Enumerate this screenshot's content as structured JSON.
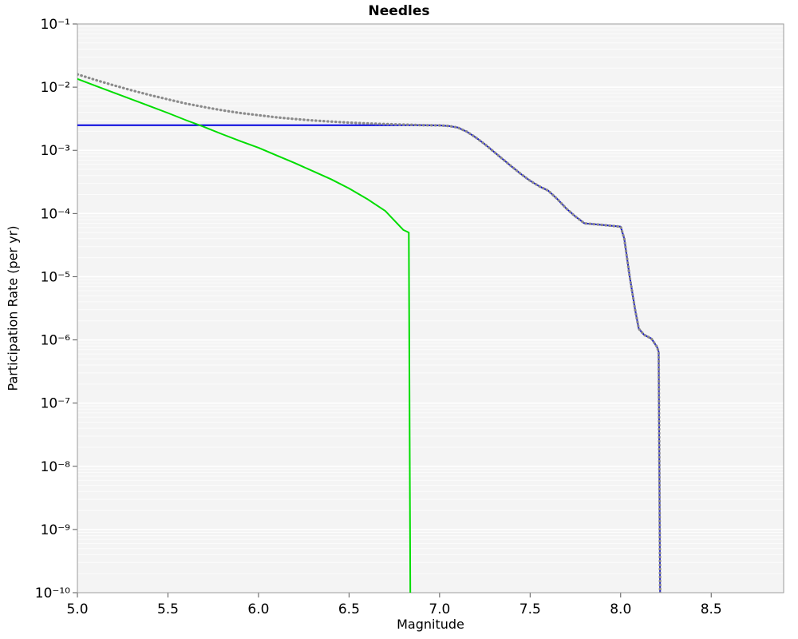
{
  "chart_data": {
    "type": "line",
    "title": "Needles",
    "xlabel": "Magnitude",
    "ylabel": "Participation Rate (per yr)",
    "xlim": [
      5.0,
      8.9
    ],
    "ylim_exp": [
      -10,
      -1
    ],
    "grid": true,
    "legend": "none",
    "colors": {
      "plot_bg": "#f4f4f4",
      "grid": "#ffffff",
      "frame": "#9b9b9b",
      "tick": "#555555",
      "text": "#000000"
    },
    "x_ticks": [
      {
        "v": 5.0,
        "label": "5.0"
      },
      {
        "v": 5.5,
        "label": "5.5"
      },
      {
        "v": 6.0,
        "label": "6.0"
      },
      {
        "v": 6.5,
        "label": "6.5"
      },
      {
        "v": 7.0,
        "label": "7.0"
      },
      {
        "v": 7.5,
        "label": "7.5"
      },
      {
        "v": 8.0,
        "label": "8.0"
      },
      {
        "v": 8.5,
        "label": "8.5"
      }
    ],
    "y_ticks": [
      {
        "exp": -1,
        "label": "10⁻¹"
      },
      {
        "exp": -2,
        "label": "10⁻²"
      },
      {
        "exp": -3,
        "label": "10⁻³"
      },
      {
        "exp": -4,
        "label": "10⁻⁴"
      },
      {
        "exp": -5,
        "label": "10⁻⁵"
      },
      {
        "exp": -6,
        "label": "10⁻⁶"
      },
      {
        "exp": -7,
        "label": "10⁻⁷"
      },
      {
        "exp": -8,
        "label": "10⁻⁸"
      },
      {
        "exp": -9,
        "label": "10⁻⁹"
      },
      {
        "exp": -10,
        "label": "10⁻¹⁰"
      }
    ],
    "series": [
      {
        "id": "blue-solid",
        "color": "#0000dd",
        "style": "solid",
        "width": 2,
        "points": [
          [
            5.0,
            0.0025
          ],
          [
            6.9,
            0.0025
          ],
          [
            7.0,
            0.00248
          ],
          [
            7.05,
            0.00243
          ],
          [
            7.1,
            0.0023
          ],
          [
            7.15,
            0.00198
          ],
          [
            7.2,
            0.0016
          ],
          [
            7.25,
            0.00125
          ],
          [
            7.3,
            0.00095
          ],
          [
            7.35,
            0.00072
          ],
          [
            7.4,
            0.00055
          ],
          [
            7.45,
            0.00042
          ],
          [
            7.5,
            0.00033
          ],
          [
            7.55,
            0.00027
          ],
          [
            7.6,
            0.00023
          ],
          [
            7.65,
            0.00017
          ],
          [
            7.7,
            0.00012
          ],
          [
            7.75,
            9e-05
          ],
          [
            7.8,
            7e-05
          ],
          [
            7.9,
            6.6e-05
          ],
          [
            8.0,
            6.2e-05
          ],
          [
            8.02,
            4e-05
          ],
          [
            8.05,
            1e-05
          ],
          [
            8.08,
            3e-06
          ],
          [
            8.1,
            1.5e-06
          ],
          [
            8.13,
            1.2e-06
          ],
          [
            8.17,
            1.05e-06
          ],
          [
            8.2,
            7.8e-07
          ],
          [
            8.21,
            6.5e-07
          ],
          [
            8.22,
            1e-11
          ]
        ]
      },
      {
        "id": "green-solid",
        "color": "#00dd00",
        "style": "solid",
        "width": 2,
        "points": [
          [
            5.0,
            0.0135
          ],
          [
            5.1,
            0.0105
          ],
          [
            5.2,
            0.0082
          ],
          [
            5.3,
            0.0064
          ],
          [
            5.4,
            0.005
          ],
          [
            5.5,
            0.0039
          ],
          [
            5.6,
            0.003
          ],
          [
            5.7,
            0.00235
          ],
          [
            5.8,
            0.0018
          ],
          [
            5.9,
            0.0014
          ],
          [
            6.0,
            0.0011
          ],
          [
            6.1,
            0.00083
          ],
          [
            6.2,
            0.00063
          ],
          [
            6.3,
            0.00047
          ],
          [
            6.4,
            0.00035
          ],
          [
            6.5,
            0.00025
          ],
          [
            6.6,
            0.00017
          ],
          [
            6.7,
            0.00011
          ],
          [
            6.8,
            5.5e-05
          ],
          [
            6.83,
            5e-05
          ],
          [
            6.84,
            1e-11
          ]
        ]
      },
      {
        "id": "gray-dotted-total",
        "color": "#8a8a8a",
        "style": "dotted",
        "width": 3.2,
        "points": [
          [
            5.0,
            0.016
          ],
          [
            5.1,
            0.013
          ],
          [
            5.2,
            0.0107
          ],
          [
            5.3,
            0.0089
          ],
          [
            5.4,
            0.0075
          ],
          [
            5.5,
            0.0064
          ],
          [
            5.6,
            0.0055
          ],
          [
            5.7,
            0.00485
          ],
          [
            5.8,
            0.0043
          ],
          [
            5.9,
            0.0039
          ],
          [
            6.0,
            0.0036
          ],
          [
            6.1,
            0.00333
          ],
          [
            6.2,
            0.00313
          ],
          [
            6.3,
            0.00297
          ],
          [
            6.4,
            0.00285
          ],
          [
            6.5,
            0.00275
          ],
          [
            6.6,
            0.00267
          ],
          [
            6.7,
            0.00261
          ],
          [
            6.8,
            0.002555
          ],
          [
            6.83,
            0.00255
          ],
          [
            6.9,
            0.0025
          ],
          [
            7.0,
            0.00248
          ],
          [
            7.05,
            0.00243
          ],
          [
            7.1,
            0.0023
          ],
          [
            7.15,
            0.00198
          ],
          [
            7.2,
            0.0016
          ],
          [
            7.25,
            0.00125
          ],
          [
            7.3,
            0.00095
          ],
          [
            7.35,
            0.00072
          ],
          [
            7.4,
            0.00055
          ],
          [
            7.45,
            0.00042
          ],
          [
            7.5,
            0.00033
          ],
          [
            7.55,
            0.00027
          ],
          [
            7.6,
            0.00023
          ],
          [
            7.65,
            0.00017
          ],
          [
            7.7,
            0.00012
          ],
          [
            7.75,
            9e-05
          ],
          [
            7.8,
            7e-05
          ],
          [
            7.9,
            6.6e-05
          ],
          [
            8.0,
            6.2e-05
          ],
          [
            8.02,
            4e-05
          ],
          [
            8.05,
            1e-05
          ],
          [
            8.08,
            3e-06
          ],
          [
            8.1,
            1.5e-06
          ],
          [
            8.13,
            1.2e-06
          ],
          [
            8.17,
            1.05e-06
          ],
          [
            8.2,
            7.8e-07
          ],
          [
            8.21,
            6.5e-07
          ],
          [
            8.22,
            1e-11
          ]
        ]
      }
    ]
  }
}
